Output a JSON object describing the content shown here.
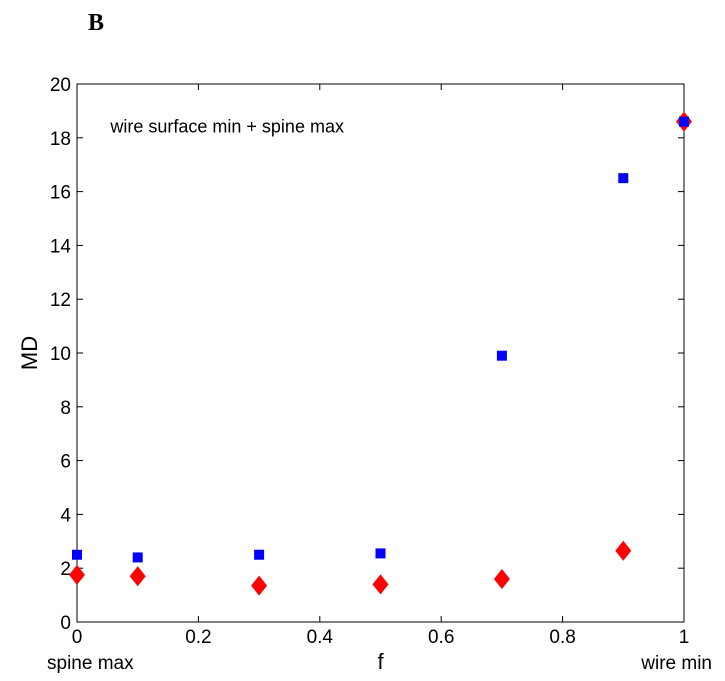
{
  "figure": {
    "panel_label": "B"
  },
  "chart_data": {
    "type": "scatter",
    "title": "",
    "xlabel": "f",
    "ylabel": "MD",
    "xlim": [
      0,
      1
    ],
    "ylim": [
      0,
      20
    ],
    "xticks": [
      0,
      0.2,
      0.4,
      0.6,
      0.8,
      1
    ],
    "xtick_labels": [
      "0",
      "0.2",
      "0.4",
      "0.6",
      "0.8",
      "1"
    ],
    "yticks": [
      0,
      2,
      4,
      6,
      8,
      10,
      12,
      14,
      16,
      18,
      20
    ],
    "ytick_labels": [
      "0",
      "2",
      "4",
      "6",
      "8",
      "10",
      "12",
      "14",
      "16",
      "18",
      "20"
    ],
    "grid": false,
    "annotation": "wire surface min + spine max",
    "x_end_labels": {
      "left": "spine max",
      "right": "wire min"
    },
    "series": [
      {
        "marker": "square",
        "color": "#0000ff",
        "x": [
          0,
          0.1,
          0.3,
          0.5,
          0.7,
          0.9,
          1
        ],
        "y": [
          2.5,
          2.4,
          2.5,
          2.55,
          9.9,
          16.5,
          18.6
        ]
      },
      {
        "marker": "diamond",
        "color": "#ff0000",
        "x": [
          0,
          0.1,
          0.3,
          0.5,
          0.7,
          0.9,
          1
        ],
        "y": [
          1.75,
          1.7,
          1.35,
          1.4,
          1.6,
          2.65,
          18.6
        ]
      }
    ]
  }
}
